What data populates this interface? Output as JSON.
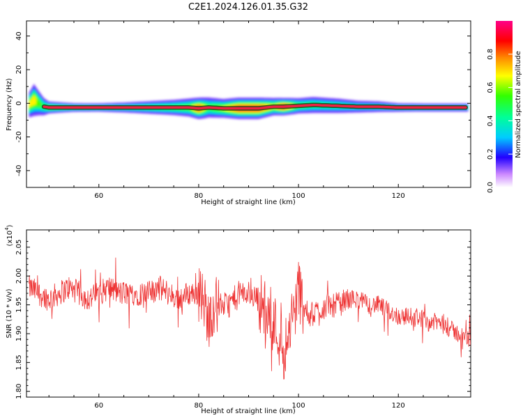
{
  "figure": {
    "title": "C2E1.2024.126.01.35.G32"
  },
  "chart_data": [
    {
      "type": "heatmap",
      "title": "C2E1.2024.126.01.35.G32",
      "xlabel": "Height of straight line (km)",
      "ylabel": "Frequency (Hz)",
      "xlim": [
        45.5,
        134.5
      ],
      "ylim": [
        -50,
        49
      ],
      "x_ticks": [
        60,
        80,
        100,
        120
      ],
      "y_ticks": [
        -40,
        -20,
        0,
        20,
        40
      ],
      "colorbar": {
        "label": "Normalized spectral amplitude",
        "range": [
          0.0,
          1.0
        ],
        "ticks": [
          0.0,
          0.2,
          0.4,
          0.6,
          0.8
        ]
      },
      "ridge": {
        "x": [
          46,
          47,
          48,
          49,
          50,
          55,
          60,
          65,
          70,
          75,
          78,
          80,
          82,
          85,
          88,
          92,
          95,
          97,
          100,
          103,
          108,
          112,
          116,
          120,
          125,
          130,
          134
        ],
        "center_hz": [
          -1,
          2,
          0,
          -2,
          -2.5,
          -2.5,
          -2.5,
          -2.5,
          -2.5,
          -2.5,
          -2.5,
          -3,
          -2.5,
          -3,
          -3,
          -3,
          -2,
          -2,
          -1.5,
          -1,
          -1.5,
          -2,
          -2,
          -2.5,
          -2.5,
          -2.5,
          -2.5
        ],
        "spread_hz": [
          4,
          5,
          4,
          3,
          2,
          1.5,
          1.5,
          1.8,
          2.2,
          2.6,
          3.0,
          3.2,
          3.4,
          3.0,
          3.2,
          3.2,
          2.8,
          2.6,
          2.6,
          2.8,
          2.6,
          2.2,
          2.0,
          1.6,
          1.5,
          1.5,
          1.5
        ],
        "peak_amplitude": [
          0.7,
          0.8,
          0.6,
          0.5,
          0.6,
          0.5,
          0.45,
          0.45,
          0.5,
          0.55,
          0.6,
          0.98,
          0.55,
          0.7,
          0.98,
          0.98,
          0.7,
          0.98,
          0.55,
          0.5,
          0.45,
          0.4,
          0.4,
          0.4,
          0.4,
          0.4,
          0.4
        ]
      }
    },
    {
      "type": "line",
      "xlabel": "Height of straight line (km)",
      "ylabel": "SNR (10 * v/v)",
      "y_multiplier": "(x10",
      "y_multiplier_exp": "4",
      "xlim": [
        45.5,
        134.5
      ],
      "ylim": [
        1.79,
        2.08
      ],
      "x_ticks": [
        60,
        80,
        100,
        120
      ],
      "y_ticks": [
        1.8,
        1.85,
        1.9,
        1.95,
        2.0,
        2.05
      ],
      "series": [
        {
          "color": "#ee3333",
          "x": [
            46,
            48,
            50,
            52,
            54,
            56,
            58,
            60,
            62,
            64,
            66,
            68,
            70,
            72,
            74,
            76,
            78,
            80,
            81,
            82,
            83,
            84,
            86,
            88,
            90,
            92,
            94,
            95,
            96,
            97,
            98,
            99,
            100,
            101,
            102,
            104,
            106,
            108,
            110,
            112,
            114,
            116,
            118,
            120,
            122,
            124,
            126,
            128,
            130,
            132,
            134
          ],
          "values": [
            1.98,
            1.97,
            1.96,
            1.97,
            1.98,
            1.97,
            1.96,
            1.97,
            1.98,
            1.97,
            1.97,
            1.97,
            1.97,
            1.98,
            1.97,
            1.96,
            1.97,
            1.97,
            1.96,
            1.92,
            1.95,
            1.95,
            1.95,
            1.97,
            1.97,
            1.96,
            1.93,
            1.92,
            1.9,
            1.87,
            1.9,
            1.93,
            1.98,
            1.95,
            1.93,
            1.94,
            1.95,
            1.95,
            1.96,
            1.96,
            1.95,
            1.95,
            1.94,
            1.93,
            1.93,
            1.93,
            1.92,
            1.92,
            1.91,
            1.9,
            1.89
          ]
        }
      ]
    }
  ]
}
